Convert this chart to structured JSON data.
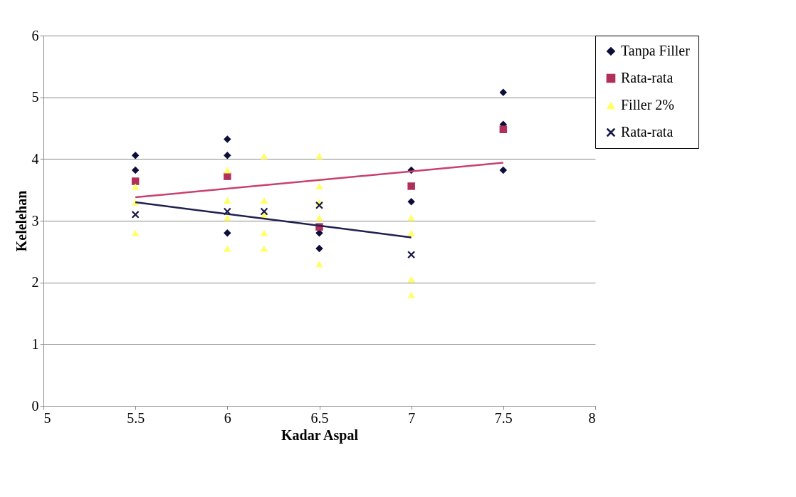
{
  "chart_data": {
    "type": "scatter",
    "xlabel": "Kadar Aspal",
    "ylabel": "Kelelehan",
    "xlim": [
      5,
      8
    ],
    "ylim": [
      0,
      6
    ],
    "xticks": [
      5,
      5.5,
      6,
      6.5,
      7,
      7.5,
      8
    ],
    "yticks": [
      0,
      1,
      2,
      3,
      4,
      5,
      6
    ],
    "grid": "y",
    "legend": "right",
    "series": [
      {
        "name": "Tanpa Filler",
        "marker": "diamond",
        "color": "#0d0d3a",
        "x": [
          5.5,
          5.5,
          6,
          6,
          6,
          6.5,
          6.5,
          7,
          7,
          7.5,
          7.5,
          7.5
        ],
        "values": [
          4.06,
          3.82,
          4.32,
          4.06,
          2.8,
          2.8,
          2.55,
          3.82,
          3.31,
          5.08,
          4.56,
          3.82
        ]
      },
      {
        "name": "Rata-rata",
        "marker": "square",
        "color": "#b0305a",
        "x": [
          5.5,
          6,
          6.5,
          7,
          7.5
        ],
        "values": [
          3.64,
          3.72,
          2.9,
          3.56,
          4.48
        ]
      },
      {
        "name": "Filler 2%",
        "marker": "triangle",
        "color": "#ffff66",
        "x": [
          5.5,
          5.5,
          5.5,
          6,
          6,
          6,
          6,
          6.2,
          6.2,
          6.2,
          6.2,
          6.2,
          6.5,
          6.5,
          6.5,
          6.5,
          6.5,
          7,
          7,
          7,
          7
        ],
        "values": [
          3.55,
          3.3,
          2.8,
          3.82,
          3.33,
          3.05,
          2.55,
          4.05,
          3.33,
          3.09,
          2.8,
          2.55,
          4.05,
          3.56,
          3.3,
          3.05,
          2.3,
          3.05,
          2.8,
          2.05,
          1.8
        ]
      },
      {
        "name": "Rata-rata",
        "marker": "cross",
        "color": "#1a1a4a",
        "x": [
          5.5,
          6,
          6.2,
          6.5,
          7
        ],
        "values": [
          3.1,
          3.15,
          3.15,
          3.25,
          2.45
        ]
      },
      {
        "type": "line",
        "marker": "none",
        "color": "#c8406e",
        "x": [
          5.5,
          7.5
        ],
        "values": [
          3.38,
          3.94
        ]
      },
      {
        "type": "line",
        "marker": "none",
        "color": "#1f2050",
        "x": [
          5.5,
          7
        ],
        "values": [
          3.3,
          2.73
        ]
      }
    ]
  }
}
